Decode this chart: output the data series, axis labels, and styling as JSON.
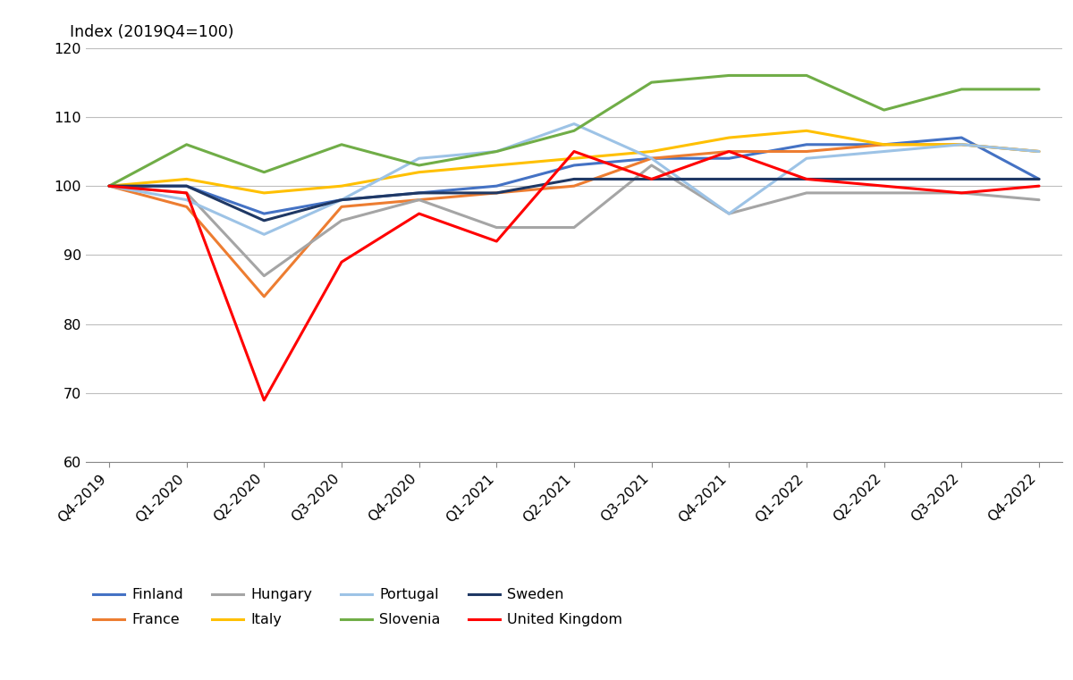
{
  "x_labels": [
    "Q4-2019",
    "Q1-2020",
    "Q2-2020",
    "Q3-2020",
    "Q4-2020",
    "Q1-2021",
    "Q2-2021",
    "Q3-2021",
    "Q4-2021",
    "Q1-2022",
    "Q2-2022",
    "Q3-2022",
    "Q4-2022"
  ],
  "series": {
    "Finland": {
      "color": "#4472C4",
      "values": [
        100,
        100,
        96,
        98,
        99,
        100,
        103,
        104,
        104,
        106,
        106,
        107,
        101
      ]
    },
    "France": {
      "color": "#ED7D31",
      "values": [
        100,
        97,
        84,
        97,
        98,
        99,
        100,
        104,
        105,
        105,
        106,
        106,
        105
      ]
    },
    "Hungary": {
      "color": "#A5A5A5",
      "values": [
        100,
        99,
        87,
        95,
        98,
        94,
        94,
        103,
        96,
        99,
        99,
        99,
        98
      ]
    },
    "Italy": {
      "color": "#FFC000",
      "values": [
        100,
        101,
        99,
        100,
        102,
        103,
        104,
        105,
        107,
        108,
        106,
        106,
        105
      ]
    },
    "Portugal": {
      "color": "#9DC3E6",
      "values": [
        100,
        98,
        93,
        98,
        104,
        105,
        109,
        104,
        96,
        104,
        105,
        106,
        105
      ]
    },
    "Slovenia": {
      "color": "#70AD47",
      "values": [
        100,
        106,
        102,
        106,
        103,
        105,
        108,
        115,
        116,
        116,
        111,
        114,
        114
      ]
    },
    "Sweden": {
      "color": "#1F3864",
      "values": [
        100,
        100,
        95,
        98,
        99,
        99,
        101,
        101,
        101,
        101,
        101,
        101,
        101
      ]
    },
    "United Kingdom": {
      "color": "#FF0000",
      "values": [
        100,
        99,
        69,
        89,
        96,
        92,
        105,
        101,
        105,
        101,
        100,
        99,
        100
      ]
    }
  },
  "ylabel": "Index (2019Q4=100)",
  "ylim": [
    60,
    122
  ],
  "yticks": [
    60,
    70,
    80,
    90,
    100,
    110,
    120
  ],
  "background_color": "#FFFFFF",
  "grid_color": "#BEBEBE",
  "legend_row1": [
    "Finland",
    "France",
    "Hungary",
    "Italy"
  ],
  "legend_row2": [
    "Portugal",
    "Slovenia",
    "Sweden",
    "United Kingdom"
  ]
}
